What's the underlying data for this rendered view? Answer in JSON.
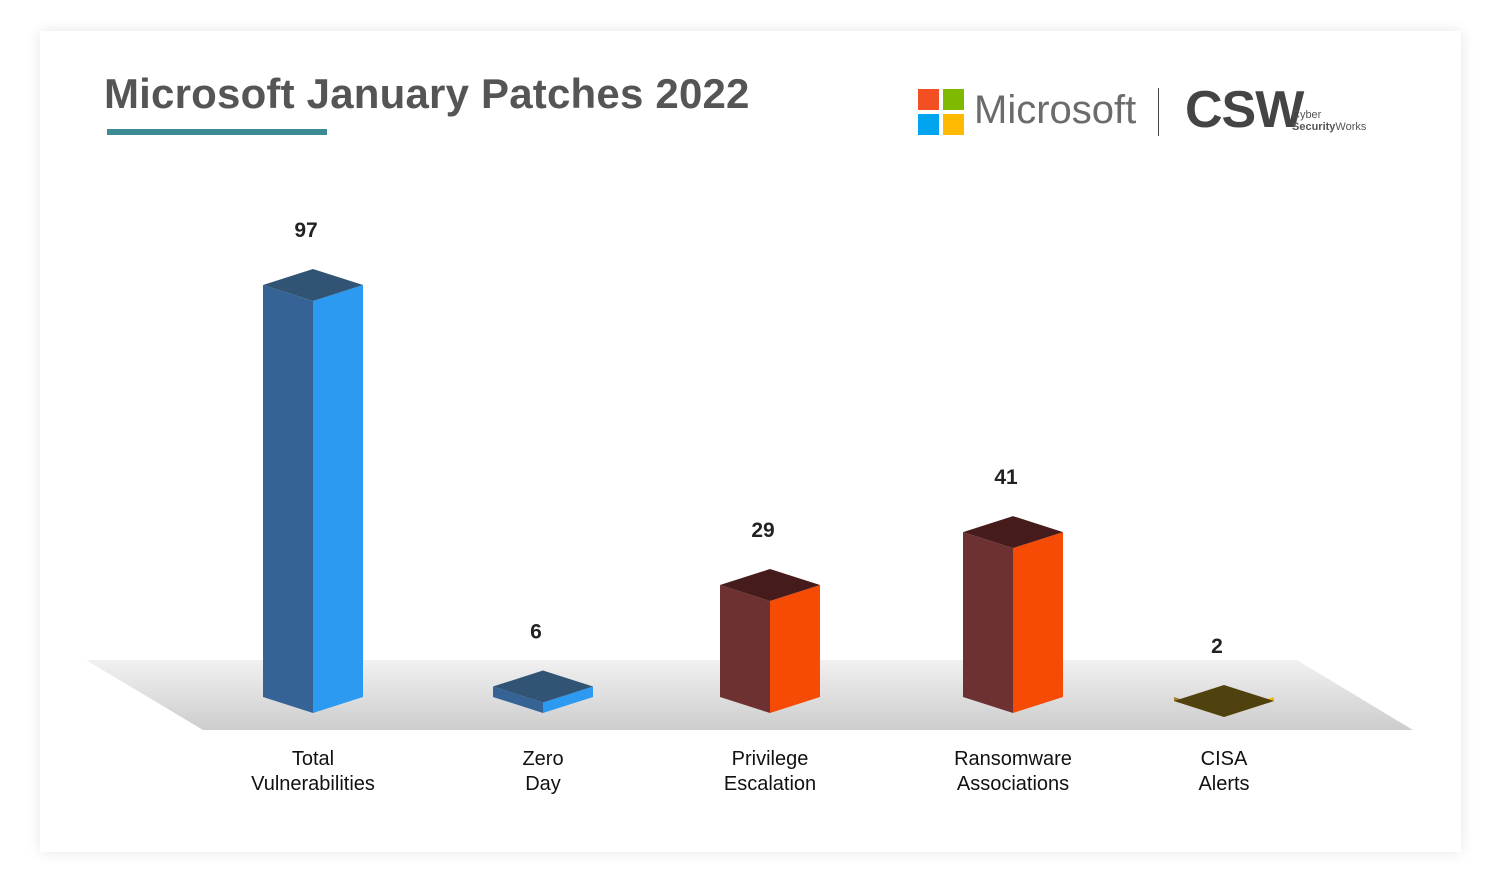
{
  "header": {
    "title": "Microsoft January Patches 2022",
    "underline_color": "#3b8a94"
  },
  "logos": {
    "microsoft": {
      "name": "Microsoft",
      "squares": [
        "#f25022",
        "#7fba00",
        "#00a4ef",
        "#ffb900"
      ]
    },
    "csw": {
      "text": "CSW",
      "sub_line1": "Cyber",
      "sub_line2_bold": "Security",
      "sub_line2_rest": "Works"
    }
  },
  "chart_data": {
    "type": "bar",
    "title": "Microsoft January Patches 2022",
    "categories": [
      "Total Vulnerabilities",
      "Zero Day",
      "Privilege Escalation",
      "Ransomware Associations",
      "CISA Alerts"
    ],
    "category_lines": [
      [
        "Total",
        "Vulnerabilities"
      ],
      [
        "Zero",
        "Day"
      ],
      [
        "Privilege",
        "Escalation"
      ],
      [
        "Ransomware",
        "Associations"
      ],
      [
        "CISA",
        "Alerts"
      ]
    ],
    "values": [
      97,
      6,
      29,
      41,
      2
    ],
    "value_labels": [
      "97",
      "6",
      "29",
      "41",
      "2"
    ],
    "colors": [
      {
        "front": "#2b9af0",
        "side": "#366395",
        "top": "#315475"
      },
      {
        "front": "#2b9af0",
        "side": "#366395",
        "top": "#315475"
      },
      {
        "front": "#f54b04",
        "side": "#6e3132",
        "top": "#461b1c"
      },
      {
        "front": "#f54b04",
        "side": "#6e3132",
        "top": "#461b1c"
      },
      {
        "front": "#ffb400",
        "side": "#a0812e",
        "top": "#4f420e"
      }
    ],
    "bar_style": "3d",
    "ylim": [
      0,
      97
    ]
  }
}
